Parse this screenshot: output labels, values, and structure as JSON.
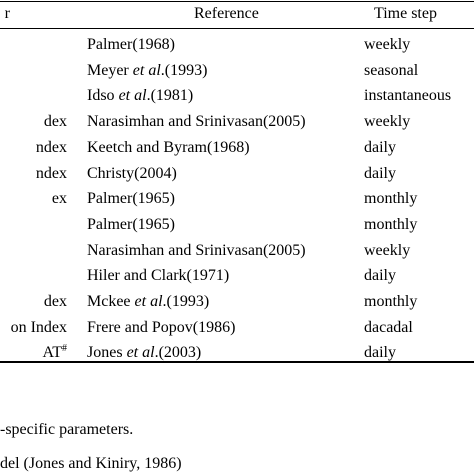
{
  "table": {
    "header": {
      "index_fragment": "r",
      "reference": "Reference",
      "time_step": "Time step"
    },
    "rows": [
      {
        "index": "",
        "ref_pre": "Palmer(1968)",
        "ref_em": "",
        "ref_post": "",
        "step": "weekly",
        "index_sup": ""
      },
      {
        "index": "",
        "ref_pre": "Meyer ",
        "ref_em": "et al",
        "ref_post": ".(1993)",
        "step": "seasonal",
        "index_sup": ""
      },
      {
        "index": "",
        "ref_pre": "Idso ",
        "ref_em": "et al",
        "ref_post": ".(1981)",
        "step": "instantaneous",
        "index_sup": ""
      },
      {
        "index": "dex",
        "ref_pre": "Narasimhan and Srinivasan(2005)",
        "ref_em": "",
        "ref_post": "",
        "step": "weekly",
        "index_sup": ""
      },
      {
        "index": "ndex",
        "ref_pre": "Keetch and Byram(1968)",
        "ref_em": "",
        "ref_post": "",
        "step": "daily",
        "index_sup": ""
      },
      {
        "index": "ndex",
        "ref_pre": "Christy(2004)",
        "ref_em": "",
        "ref_post": "",
        "step": "daily",
        "index_sup": ""
      },
      {
        "index": "ex",
        "ref_pre": "Palmer(1965)",
        "ref_em": "",
        "ref_post": "",
        "step": "monthly",
        "index_sup": ""
      },
      {
        "index": "",
        "ref_pre": "Palmer(1965)",
        "ref_em": "",
        "ref_post": "",
        "step": "monthly",
        "index_sup": ""
      },
      {
        "index": "",
        "ref_pre": "Narasimhan and Srinivasan(2005)",
        "ref_em": "",
        "ref_post": "",
        "step": "weekly",
        "index_sup": ""
      },
      {
        "index": "",
        "ref_pre": "Hiler and Clark(1971)",
        "ref_em": "",
        "ref_post": "",
        "step": "daily",
        "index_sup": ""
      },
      {
        "index": "dex",
        "ref_pre": "Mckee ",
        "ref_em": "et al",
        "ref_post": ".(1993)",
        "step": "monthly",
        "index_sup": ""
      },
      {
        "index": "on Index",
        "ref_pre": "Frere and Popov(1986)",
        "ref_em": "",
        "ref_post": "",
        "step": "dacadal",
        "index_sup": ""
      },
      {
        "index": "AT",
        "ref_pre": "Jones ",
        "ref_em": "et al",
        "ref_post": ".(2003)",
        "step": "daily",
        "index_sup": "#"
      }
    ]
  },
  "footnotes": [
    "-specific parameters.",
    "del (Jones and Kiniry, 1986)"
  ]
}
